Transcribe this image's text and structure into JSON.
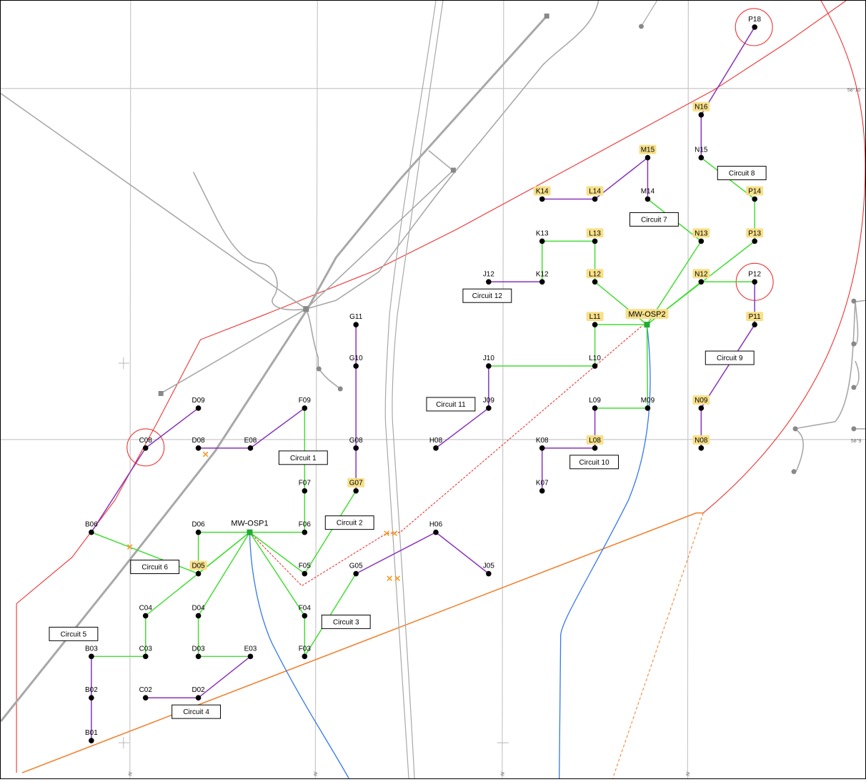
{
  "map": {
    "grid_labels": [
      "58°10",
      "58°9"
    ],
    "turbines": [
      {
        "id": "B01",
        "hl": false
      },
      {
        "id": "B02",
        "hl": false
      },
      {
        "id": "B03",
        "hl": false
      },
      {
        "id": "B06",
        "hl": false
      },
      {
        "id": "C02",
        "hl": false
      },
      {
        "id": "C03",
        "hl": false
      },
      {
        "id": "C04",
        "hl": false
      },
      {
        "id": "C08",
        "hl": false
      },
      {
        "id": "D02",
        "hl": false
      },
      {
        "id": "D03",
        "hl": false
      },
      {
        "id": "D04",
        "hl": false
      },
      {
        "id": "D05",
        "hl": true
      },
      {
        "id": "D06",
        "hl": false
      },
      {
        "id": "D08",
        "hl": false
      },
      {
        "id": "D09",
        "hl": false
      },
      {
        "id": "E03",
        "hl": false
      },
      {
        "id": "E08",
        "hl": false
      },
      {
        "id": "F03",
        "hl": false
      },
      {
        "id": "F04",
        "hl": false
      },
      {
        "id": "F05",
        "hl": false
      },
      {
        "id": "F06",
        "hl": false
      },
      {
        "id": "F07",
        "hl": false
      },
      {
        "id": "F09",
        "hl": false
      },
      {
        "id": "G05",
        "hl": false
      },
      {
        "id": "G07",
        "hl": true
      },
      {
        "id": "G08",
        "hl": false
      },
      {
        "id": "G10",
        "hl": false
      },
      {
        "id": "G11",
        "hl": false
      },
      {
        "id": "H06",
        "hl": false
      },
      {
        "id": "H08",
        "hl": false
      },
      {
        "id": "J05",
        "hl": false
      },
      {
        "id": "J09",
        "hl": false
      },
      {
        "id": "J10",
        "hl": false
      },
      {
        "id": "J12",
        "hl": false
      },
      {
        "id": "K07",
        "hl": false
      },
      {
        "id": "K08",
        "hl": false
      },
      {
        "id": "K12",
        "hl": false
      },
      {
        "id": "K13",
        "hl": false
      },
      {
        "id": "K14",
        "hl": true
      },
      {
        "id": "L08",
        "hl": true
      },
      {
        "id": "L09",
        "hl": false
      },
      {
        "id": "L10",
        "hl": false
      },
      {
        "id": "L11",
        "hl": true
      },
      {
        "id": "L12",
        "hl": true
      },
      {
        "id": "L13",
        "hl": true
      },
      {
        "id": "L14",
        "hl": true
      },
      {
        "id": "M09",
        "hl": false
      },
      {
        "id": "M14",
        "hl": false
      },
      {
        "id": "M15",
        "hl": true
      },
      {
        "id": "N08",
        "hl": true
      },
      {
        "id": "N09",
        "hl": true
      },
      {
        "id": "N12",
        "hl": true
      },
      {
        "id": "N13",
        "hl": true
      },
      {
        "id": "N15",
        "hl": false
      },
      {
        "id": "N16",
        "hl": true
      },
      {
        "id": "P11",
        "hl": true
      },
      {
        "id": "P12",
        "hl": false
      },
      {
        "id": "P13",
        "hl": true
      },
      {
        "id": "P14",
        "hl": true
      },
      {
        "id": "P18",
        "hl": false
      }
    ],
    "substations": [
      "MW-OSP1",
      "MW-OSP2"
    ],
    "circuits": [
      "Circuit 1",
      "Circuit 2",
      "Circuit 3",
      "Circuit 4",
      "Circuit 5",
      "Circuit 6",
      "Circuit 7",
      "Circuit 8",
      "Circuit 9",
      "Circuit 10",
      "Circuit 11",
      "Circuit 12"
    ],
    "colors": {
      "green_cable": "#44dd33",
      "purple_cable": "#8833bb",
      "blue_cable": "#3377ee",
      "red_boundary": "#ee3333",
      "orange_line": "#f07c26",
      "gray_feature": "#a8a8a8",
      "grid": "#c8c8c8",
      "highlight": "#f7e08a",
      "crossing_marker": "#f0a030"
    }
  }
}
